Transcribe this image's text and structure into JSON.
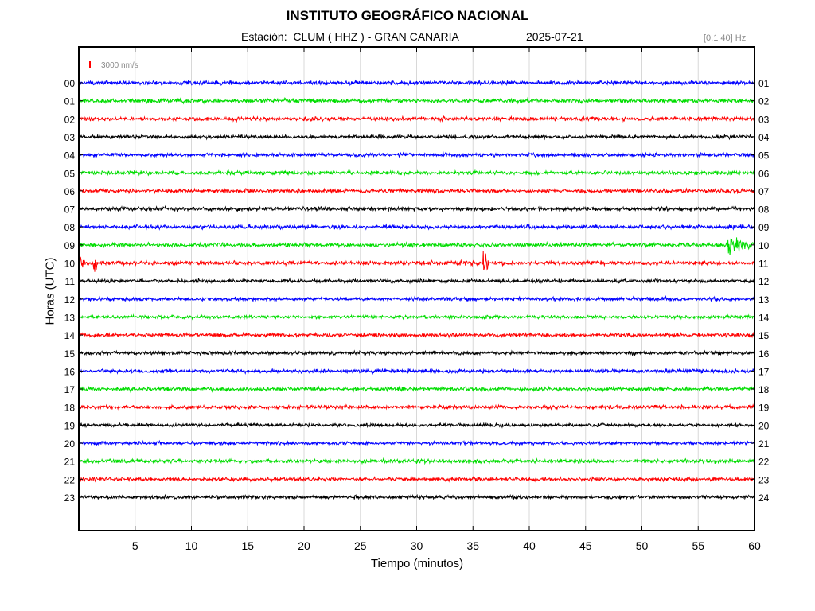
{
  "header": {
    "title": "INSTITUTO GEOGRÁFICO NACIONAL",
    "station_line": "Estación:  CLUM ( HHZ ) - GRAN CANARIA",
    "date": "2025-07-21",
    "filter": "[0.1 40] Hz"
  },
  "colors": {
    "cycle": [
      "#0000ff",
      "#00dd00",
      "#ff0000",
      "#000000"
    ],
    "grid": "#d8d8d8",
    "axis": "#000000",
    "scale_bar": "#ff0000"
  },
  "chart_data": {
    "type": "line",
    "subtype": "helicorder",
    "title": "INSTITUTO GEOGRÁFICO NACIONAL",
    "xlabel": "Tiempo (minutos)",
    "ylabel": "Horas (UTC)",
    "xlim": [
      0,
      60
    ],
    "x_ticks": [
      5,
      10,
      15,
      20,
      25,
      30,
      35,
      40,
      45,
      50,
      55,
      60
    ],
    "grid": true,
    "scale": {
      "label": "3000 nm/s",
      "value": 3000,
      "unit": "nm/s"
    },
    "left_tick_labels": [
      "00",
      "01",
      "02",
      "03",
      "04",
      "05",
      "06",
      "07",
      "08",
      "09",
      "10",
      "11",
      "12",
      "13",
      "14",
      "15",
      "16",
      "17",
      "18",
      "19",
      "20",
      "21",
      "22",
      "23"
    ],
    "right_tick_labels": [
      "01",
      "02",
      "03",
      "04",
      "05",
      "06",
      "07",
      "08",
      "09",
      "10",
      "11",
      "12",
      "13",
      "14",
      "15",
      "16",
      "17",
      "18",
      "19",
      "20",
      "21",
      "22",
      "23",
      "24"
    ],
    "series": [
      {
        "hour": "00",
        "noise_level": 0.3
      },
      {
        "hour": "01",
        "noise_level": 0.32
      },
      {
        "hour": "02",
        "noise_level": 0.3
      },
      {
        "hour": "03",
        "noise_level": 0.28
      },
      {
        "hour": "04",
        "noise_level": 0.28
      },
      {
        "hour": "05",
        "noise_level": 0.3
      },
      {
        "hour": "06",
        "noise_level": 0.3
      },
      {
        "hour": "07",
        "noise_level": 0.3
      },
      {
        "hour": "08",
        "noise_level": 0.3
      },
      {
        "hour": "09",
        "noise_level": 0.32,
        "events": [
          {
            "minute": 57.5,
            "duration": 2.5,
            "amplitude": 1.5
          }
        ]
      },
      {
        "hour": "10",
        "noise_level": 0.32,
        "events": [
          {
            "minute": 0.0,
            "duration": 0.5,
            "amplitude": 1.6
          },
          {
            "minute": 1.3,
            "duration": 0.4,
            "amplitude": 2.0
          },
          {
            "minute": 35.9,
            "duration": 0.5,
            "amplitude": 2.4
          }
        ]
      },
      {
        "hour": "11",
        "noise_level": 0.28
      },
      {
        "hour": "12",
        "noise_level": 0.28
      },
      {
        "hour": "13",
        "noise_level": 0.26
      },
      {
        "hour": "14",
        "noise_level": 0.3
      },
      {
        "hour": "15",
        "noise_level": 0.28
      },
      {
        "hour": "16",
        "noise_level": 0.28
      },
      {
        "hour": "17",
        "noise_level": 0.32
      },
      {
        "hour": "18",
        "noise_level": 0.3
      },
      {
        "hour": "19",
        "noise_level": 0.26
      },
      {
        "hour": "20",
        "noise_level": 0.26
      },
      {
        "hour": "21",
        "noise_level": 0.3
      },
      {
        "hour": "22",
        "noise_level": 0.28
      },
      {
        "hour": "23",
        "noise_level": 0.28
      }
    ]
  }
}
